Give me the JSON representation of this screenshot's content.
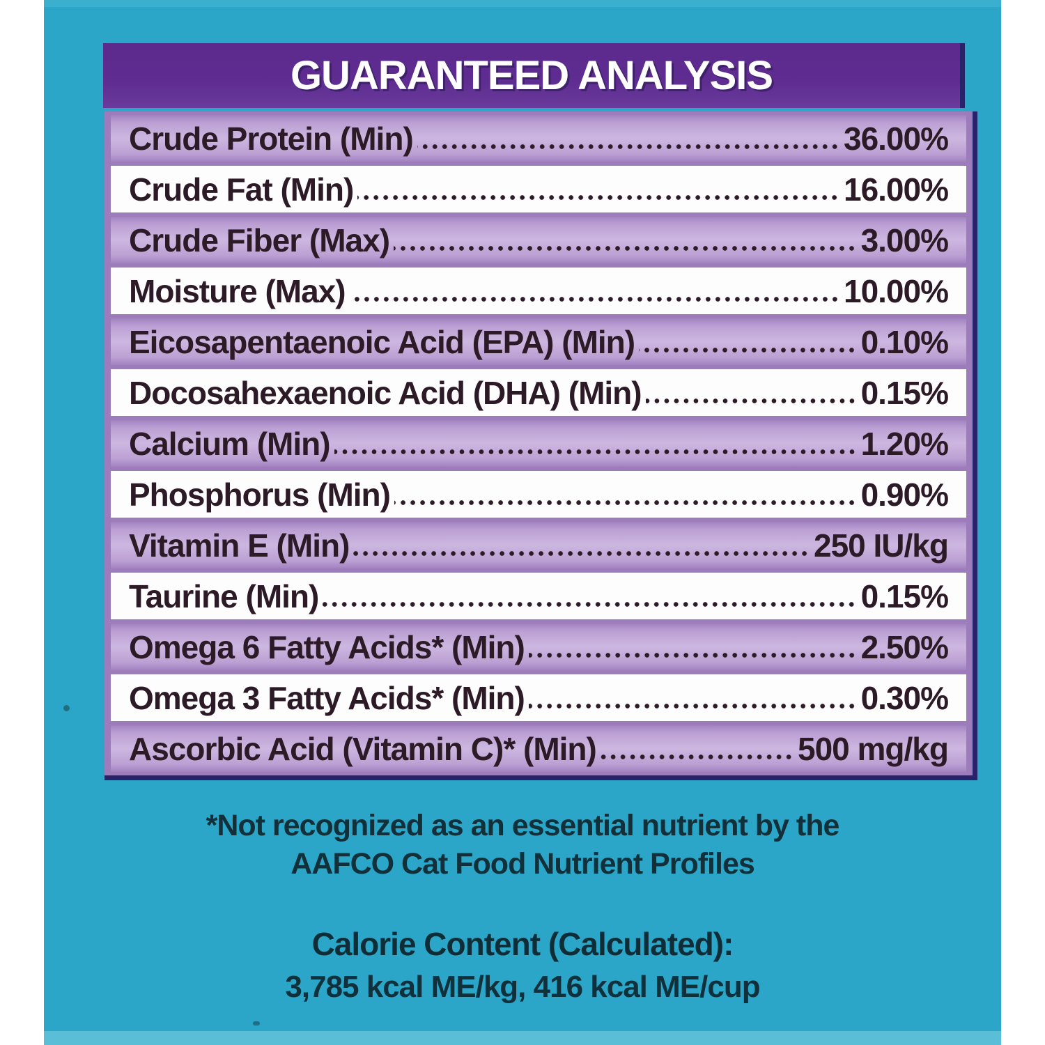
{
  "colors": {
    "page_background": "#ffffff",
    "label_teal": "#2ba6c8",
    "header_purple": "#5f2d91",
    "row_purple": "#bb9fd3",
    "row_white": "#fefdfe",
    "outline_navy": "#27226a",
    "row_ink": "#2d1a27",
    "footer_ink": "#123039"
  },
  "header": {
    "title": "GUARANTEED ANALYSIS"
  },
  "table": {
    "rows": [
      {
        "label": "Crude Protein (Min)",
        "value": "36.00%"
      },
      {
        "label": "Crude Fat (Min)",
        "value": "16.00%"
      },
      {
        "label": "Crude Fiber (Max)",
        "value": "3.00%"
      },
      {
        "label": "Moisture (Max)",
        "value": "10.00%"
      },
      {
        "label": "Eicosapentaenoic Acid (EPA) (Min)",
        "value": "0.10%"
      },
      {
        "label": "Docosahexaenoic Acid (DHA) (Min)",
        "value": "0.15%"
      },
      {
        "label": "Calcium (Min)",
        "value": "1.20%"
      },
      {
        "label": "Phosphorus (Min)",
        "value": "0.90%"
      },
      {
        "label": "Vitamin E (Min)",
        "value": "250 IU/kg"
      },
      {
        "label": "Taurine (Min)",
        "value": "0.15%"
      },
      {
        "label": "Omega 6 Fatty Acids* (Min)",
        "value": "2.50%"
      },
      {
        "label": "Omega 3 Fatty Acids* (Min)",
        "value": "0.30%"
      },
      {
        "label": "Ascorbic Acid (Vitamin C)* (Min)",
        "value": "500 mg/kg"
      }
    ]
  },
  "footnote": {
    "line1": "*Not recognized as an essential nutrient by the",
    "line2": "AAFCO Cat Food Nutrient Profiles"
  },
  "calories": {
    "heading": "Calorie Content (Calculated):",
    "values": "3,785 kcal ME/kg, 416 kcal ME/cup"
  }
}
